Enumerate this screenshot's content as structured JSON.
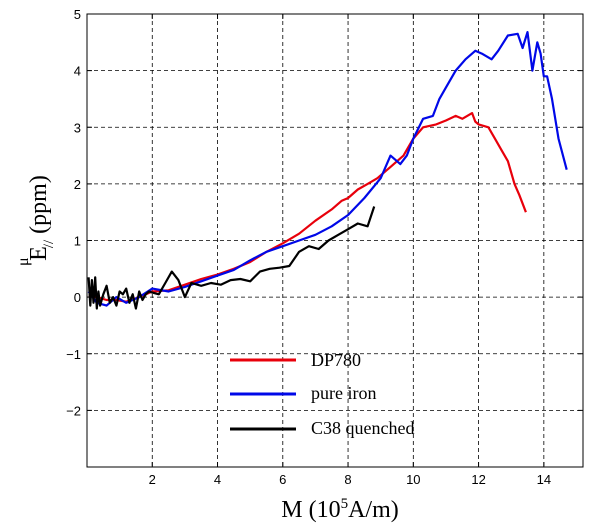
{
  "chart_data": {
    "type": "line",
    "title": "",
    "xlabel": {
      "main": "M (10",
      "sup": "5",
      "tail": "A/m)"
    },
    "ylabel": {
      "main": "E",
      "sup": "μ",
      "sub": "//",
      "tail": " (ppm)"
    },
    "xlim": [
      0,
      15.2
    ],
    "ylim": [
      -3,
      5
    ],
    "xticks": [
      2,
      4,
      6,
      8,
      10,
      12,
      14
    ],
    "yticks": [
      -2,
      -1,
      0,
      1,
      2,
      3,
      4,
      5
    ],
    "xtick_labels": [
      "2",
      "4",
      "6",
      "8",
      "10",
      "12",
      "14"
    ],
    "ytick_labels": [
      "−2",
      "−1",
      "0",
      "1",
      "2",
      "3",
      "4",
      "5"
    ],
    "grid": true,
    "legend_position": "bottom-center",
    "series": [
      {
        "name": "DP780",
        "color": "#e8000b",
        "x": [
          0.05,
          0.3,
          0.6,
          0.9,
          1.2,
          1.6,
          2.0,
          2.5,
          3.0,
          3.5,
          4.0,
          4.5,
          5.0,
          5.5,
          6.0,
          6.5,
          7.0,
          7.5,
          7.8,
          8.0,
          8.3,
          8.6,
          8.9,
          9.3,
          9.7,
          10.0,
          10.3,
          10.7,
          11.0,
          11.3,
          11.5,
          11.8,
          11.9,
          12.0,
          12.3,
          12.5,
          12.7,
          12.9,
          13.1,
          13.25,
          13.45
        ],
        "y": [
          0.02,
          0.0,
          -0.05,
          -0.05,
          -0.08,
          0.0,
          0.1,
          0.12,
          0.22,
          0.32,
          0.4,
          0.5,
          0.62,
          0.8,
          0.95,
          1.12,
          1.35,
          1.55,
          1.7,
          1.75,
          1.9,
          2.0,
          2.1,
          2.3,
          2.5,
          2.8,
          3.0,
          3.05,
          3.12,
          3.2,
          3.15,
          3.25,
          3.1,
          3.05,
          3.0,
          2.8,
          2.6,
          2.4,
          2.0,
          1.8,
          1.5
        ]
      },
      {
        "name": "pure iron",
        "color": "#0008e8",
        "x": [
          0.05,
          0.3,
          0.6,
          0.9,
          1.2,
          1.6,
          2.0,
          2.5,
          3.0,
          3.5,
          4.0,
          4.5,
          5.0,
          5.5,
          6.0,
          6.5,
          7.0,
          7.5,
          8.0,
          8.5,
          9.0,
          9.3,
          9.6,
          9.8,
          10.0,
          10.3,
          10.6,
          10.8,
          11.0,
          11.3,
          11.6,
          11.9,
          12.1,
          12.4,
          12.6,
          12.9,
          13.2,
          13.35,
          13.5,
          13.65,
          13.8,
          13.9,
          14.0,
          14.1,
          14.25,
          14.45,
          14.7
        ],
        "y": [
          0.1,
          -0.1,
          -0.15,
          0.0,
          -0.1,
          0.0,
          0.15,
          0.1,
          0.18,
          0.28,
          0.38,
          0.48,
          0.65,
          0.8,
          0.9,
          1.0,
          1.1,
          1.25,
          1.45,
          1.75,
          2.1,
          2.5,
          2.35,
          2.5,
          2.8,
          3.15,
          3.2,
          3.5,
          3.7,
          4.0,
          4.2,
          4.35,
          4.3,
          4.2,
          4.35,
          4.62,
          4.65,
          4.4,
          4.68,
          4.0,
          4.5,
          4.3,
          3.9,
          3.9,
          3.5,
          2.8,
          2.25
        ]
      },
      {
        "name": "C38 quenched",
        "color": "#000000",
        "x": [
          0.05,
          0.1,
          0.15,
          0.2,
          0.25,
          0.3,
          0.35,
          0.4,
          0.5,
          0.6,
          0.7,
          0.8,
          0.9,
          1.0,
          1.1,
          1.2,
          1.3,
          1.4,
          1.5,
          1.6,
          1.7,
          1.8,
          1.9,
          2.0,
          2.2,
          2.4,
          2.6,
          2.8,
          3.0,
          3.2,
          3.5,
          3.8,
          4.1,
          4.4,
          4.7,
          5.0,
          5.3,
          5.6,
          5.9,
          6.2,
          6.5,
          6.8,
          7.1,
          7.4,
          7.7,
          8.0,
          8.3,
          8.6,
          8.8
        ],
        "y": [
          0.35,
          -0.15,
          0.3,
          -0.1,
          0.35,
          -0.2,
          0.1,
          -0.15,
          0.05,
          0.2,
          -0.1,
          0.0,
          -0.15,
          0.1,
          0.05,
          0.15,
          -0.1,
          0.05,
          -0.2,
          0.1,
          -0.05,
          0.05,
          0.1,
          0.08,
          0.05,
          0.25,
          0.45,
          0.3,
          0.0,
          0.25,
          0.2,
          0.25,
          0.22,
          0.3,
          0.32,
          0.28,
          0.45,
          0.5,
          0.52,
          0.55,
          0.8,
          0.9,
          0.85,
          1.0,
          1.1,
          1.2,
          1.3,
          1.25,
          1.6
        ]
      }
    ]
  }
}
